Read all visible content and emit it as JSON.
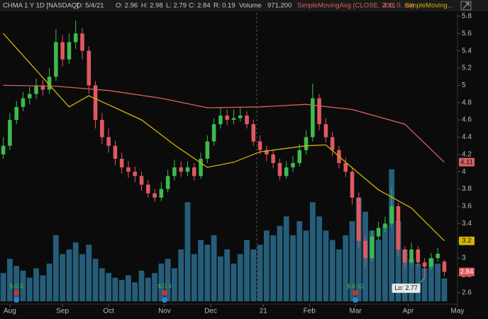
{
  "chart_data": {
    "type": "candlestick",
    "header": {
      "symbol": "CHMA 1 Y 1D [NASDAQ]",
      "date": "D: 5/4/21",
      "open": "O: 2.96",
      "high": "H: 2.98",
      "low": "L: 2.79",
      "close": "C: 2.84",
      "range": "R: 0.19",
      "volume_label": "Volume",
      "volume_value": "971,200",
      "study_1": "SimpleMovingAvg (CLOSE, 200, 0, no)",
      "study_1_value": "4.11",
      "study_2": "SimpleMoving..."
    },
    "x": [
      0,
      1,
      2,
      3,
      4,
      5,
      6,
      7,
      8,
      9,
      10,
      11,
      12,
      13,
      14,
      15,
      16,
      17,
      18,
      19,
      20,
      21,
      22,
      23,
      24,
      25,
      26,
      27,
      28,
      29,
      30,
      31,
      32,
      33,
      34,
      35,
      36,
      37,
      38,
      39,
      40,
      41,
      42,
      43,
      44,
      45,
      46,
      47,
      48,
      49,
      50,
      51,
      52,
      53,
      54,
      55,
      56,
      57,
      58,
      59,
      60,
      61,
      62,
      63,
      64,
      65,
      66,
      67
    ],
    "open": [
      4.2,
      4.3,
      4.6,
      4.75,
      4.85,
      4.9,
      5.0,
      4.95,
      5.1,
      5.5,
      5.3,
      5.5,
      5.6,
      5.4,
      5.0,
      4.6,
      4.4,
      4.3,
      4.15,
      4.05,
      4.0,
      3.95,
      3.85,
      3.75,
      3.7,
      3.8,
      3.95,
      4.05,
      4.0,
      4.05,
      3.95,
      4.15,
      4.35,
      4.55,
      4.65,
      4.6,
      4.62,
      4.65,
      4.55,
      4.35,
      4.25,
      4.2,
      4.1,
      3.95,
      4.05,
      4.1,
      4.25,
      4.4,
      4.85,
      4.55,
      4.4,
      4.25,
      4.1,
      4.0,
      3.7,
      3.2,
      3.0,
      3.25,
      3.35,
      3.4,
      3.6,
      3.1,
      2.95,
      3.1,
      2.95,
      2.9,
      3.0,
      2.96
    ],
    "high": [
      4.4,
      4.68,
      4.82,
      4.92,
      4.98,
      5.08,
      5.06,
      5.2,
      5.65,
      5.58,
      5.6,
      5.75,
      5.66,
      5.45,
      5.05,
      4.68,
      4.5,
      4.36,
      4.22,
      4.12,
      4.06,
      4.0,
      3.9,
      3.8,
      3.88,
      4.02,
      4.14,
      4.12,
      4.12,
      4.1,
      4.22,
      4.42,
      4.62,
      4.75,
      4.72,
      4.72,
      4.75,
      4.7,
      4.6,
      4.42,
      4.3,
      4.26,
      4.15,
      4.12,
      4.18,
      4.32,
      4.48,
      5.02,
      4.9,
      4.62,
      4.46,
      4.3,
      4.16,
      4.05,
      3.76,
      3.26,
      3.32,
      3.42,
      3.48,
      3.82,
      3.64,
      3.14,
      3.18,
      3.14,
      3.0,
      3.06,
      3.12,
      2.98
    ],
    "low": [
      4.15,
      4.25,
      4.55,
      4.7,
      4.78,
      4.84,
      4.88,
      4.9,
      5.05,
      5.22,
      5.25,
      5.42,
      5.3,
      4.9,
      4.5,
      4.32,
      4.22,
      4.08,
      3.98,
      3.93,
      3.88,
      3.78,
      3.7,
      3.65,
      3.66,
      3.76,
      3.9,
      3.94,
      3.95,
      3.9,
      3.92,
      4.1,
      4.3,
      4.5,
      4.54,
      4.55,
      4.58,
      4.5,
      4.3,
      4.2,
      4.12,
      4.04,
      3.9,
      3.92,
      4.0,
      4.06,
      4.2,
      4.35,
      4.48,
      4.34,
      4.18,
      4.04,
      3.94,
      3.62,
      3.12,
      2.9,
      2.96,
      3.2,
      3.3,
      3.36,
      3.02,
      2.88,
      2.92,
      2.9,
      2.77,
      2.86,
      2.96,
      2.79
    ],
    "close": [
      4.3,
      4.6,
      4.75,
      4.85,
      4.9,
      5.0,
      4.95,
      5.1,
      5.5,
      5.3,
      5.5,
      5.6,
      5.4,
      5.0,
      4.6,
      4.4,
      4.3,
      4.15,
      4.05,
      4.0,
      3.95,
      3.85,
      3.75,
      3.7,
      3.8,
      3.95,
      4.05,
      4.0,
      4.05,
      3.95,
      4.15,
      4.35,
      4.55,
      4.65,
      4.6,
      4.62,
      4.65,
      4.55,
      4.35,
      4.25,
      4.2,
      4.1,
      3.95,
      4.05,
      4.1,
      4.25,
      4.4,
      4.85,
      4.55,
      4.4,
      4.25,
      4.1,
      4.0,
      3.7,
      3.2,
      3.0,
      3.25,
      3.35,
      3.4,
      3.6,
      3.1,
      2.95,
      3.1,
      2.95,
      2.9,
      3.0,
      3.05,
      2.84
    ],
    "volume": [
      1200000,
      1800000,
      1500000,
      1300000,
      1000000,
      1400000,
      1100000,
      1600000,
      2800000,
      2000000,
      2200000,
      2500000,
      2000000,
      2400000,
      1800000,
      1400000,
      1200000,
      1000000,
      900000,
      1100000,
      800000,
      1300000,
      1000000,
      1200000,
      1600000,
      1800000,
      1400000,
      2200000,
      4200000,
      2000000,
      2600000,
      2400000,
      2800000,
      1900000,
      2200000,
      1600000,
      2000000,
      2600000,
      2200000,
      2400000,
      3000000,
      2800000,
      3200000,
      3600000,
      2800000,
      3400000,
      3000000,
      4200000,
      3600000,
      3000000,
      2600000,
      2200000,
      2800000,
      3400000,
      4400000,
      3800000,
      3000000,
      2600000,
      3200000,
      5600000,
      3400000,
      2200000,
      1800000,
      1600000,
      1400000,
      1800000,
      1600000,
      971200
    ],
    "up_color": "#3dbb4c",
    "down_color": "#e0585f",
    "volume_color": "#2b6d8e",
    "vlim": [
      0,
      8000000
    ],
    "series": [
      {
        "name": "SimpleMovingAvg (CLOSE, 200, 0, no)",
        "color": "#d9605e",
        "x": [
          0,
          8,
          16,
          24,
          31,
          39,
          46,
          53,
          61,
          67
        ],
        "values": [
          5.0,
          4.99,
          4.94,
          4.85,
          4.74,
          4.75,
          4.78,
          4.72,
          4.55,
          4.11
        ]
      },
      {
        "name": "SimpleMoving...",
        "color": "#d4b400",
        "x": [
          0,
          10,
          13,
          21,
          26,
          31,
          35,
          39,
          46,
          49,
          52,
          57,
          62,
          67
        ],
        "values": [
          5.6,
          4.75,
          4.88,
          4.6,
          4.31,
          4.05,
          4.11,
          4.23,
          4.3,
          4.31,
          4.11,
          3.79,
          3.58,
          3.2
        ]
      }
    ],
    "xlim": [
      -0.5,
      69
    ],
    "xticks": [
      {
        "value": 1,
        "label": "Aug"
      },
      {
        "value": 9,
        "label": "Sep"
      },
      {
        "value": 16,
        "label": "Oct"
      },
      {
        "value": 24.5,
        "label": "Nov"
      },
      {
        "value": 31.5,
        "label": "Dec"
      },
      {
        "value": 39.5,
        "label": "21"
      },
      {
        "value": 46.5,
        "label": "Feb"
      },
      {
        "value": 53.5,
        "label": "Mar"
      },
      {
        "value": 61.5,
        "label": "Apr"
      },
      {
        "value": 69,
        "label": "May"
      }
    ],
    "year_divider": 38.5,
    "ylim": [
      2.5,
      5.84
    ],
    "yticks": [
      2.6,
      2.8,
      3,
      3.2,
      3.4,
      3.6,
      3.8,
      4,
      4.2,
      4.4,
      4.6,
      4.8,
      5,
      5.2,
      5.4,
      5.6,
      5.8
    ],
    "events": [
      {
        "x": 2,
        "label": "$-0.5"
      },
      {
        "x": 24.5,
        "label": "$-0.3"
      },
      {
        "x": 53.5,
        "label": "$-0.32"
      }
    ],
    "low_label": "Lo: 2.77"
  }
}
